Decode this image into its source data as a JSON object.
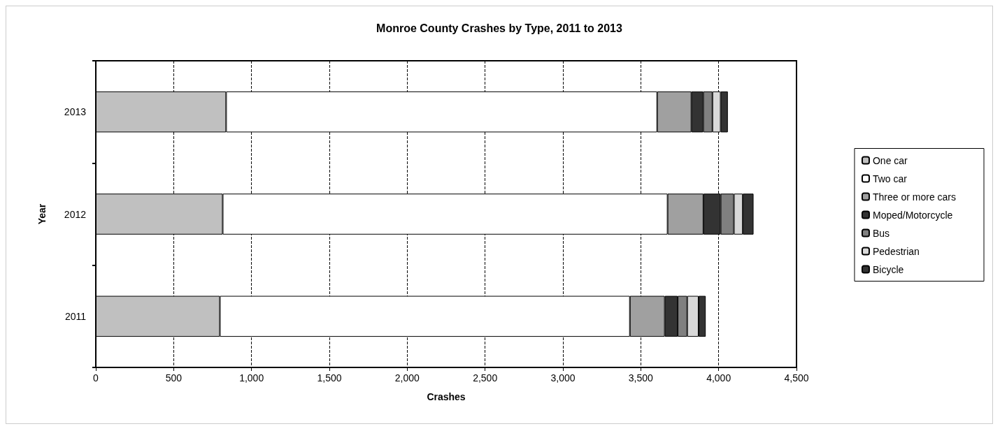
{
  "chart_data": {
    "type": "bar",
    "orientation": "horizontal",
    "stacked": true,
    "title": "Monroe County Crashes by Type, 2011 to 2013",
    "xlabel": "Crashes",
    "ylabel": "Year",
    "categories": [
      "2013",
      "2012",
      "2011"
    ],
    "series": [
      {
        "name": "One car",
        "color": "#c0c0c0",
        "values": [
          837,
          815,
          797
        ]
      },
      {
        "name": "Two car",
        "color": "#ffffff",
        "values": [
          2768,
          2857,
          2633
        ]
      },
      {
        "name": "Three or more cars",
        "color": "#a0a0a0",
        "values": [
          220,
          230,
          224
        ]
      },
      {
        "name": "Moped/Motorcycle",
        "color": "#333333",
        "values": [
          76,
          111,
          83
        ]
      },
      {
        "name": "Bus",
        "color": "#808080",
        "values": [
          59,
          85,
          61
        ]
      },
      {
        "name": "Pedestrian",
        "color": "#d9d9d9",
        "values": [
          53,
          57,
          73
        ]
      },
      {
        "name": "Bicycle",
        "color": "#333333",
        "values": [
          46,
          69,
          46
        ]
      }
    ],
    "xlim": [
      0,
      4500
    ],
    "xticks": [
      0,
      500,
      {
        "value": 1000,
        "label": "1,000"
      },
      {
        "value": 1500,
        "label": "1,500"
      },
      {
        "value": 2000,
        "label": "2,000"
      },
      {
        "value": 2500,
        "label": "2,500"
      },
      {
        "value": 3000,
        "label": "3,000"
      },
      {
        "value": 3500,
        "label": "3,500"
      },
      {
        "value": 4000,
        "label": "4,000"
      },
      {
        "value": 4500,
        "label": "4,500"
      }
    ],
    "grid": "x",
    "legend": "right"
  }
}
